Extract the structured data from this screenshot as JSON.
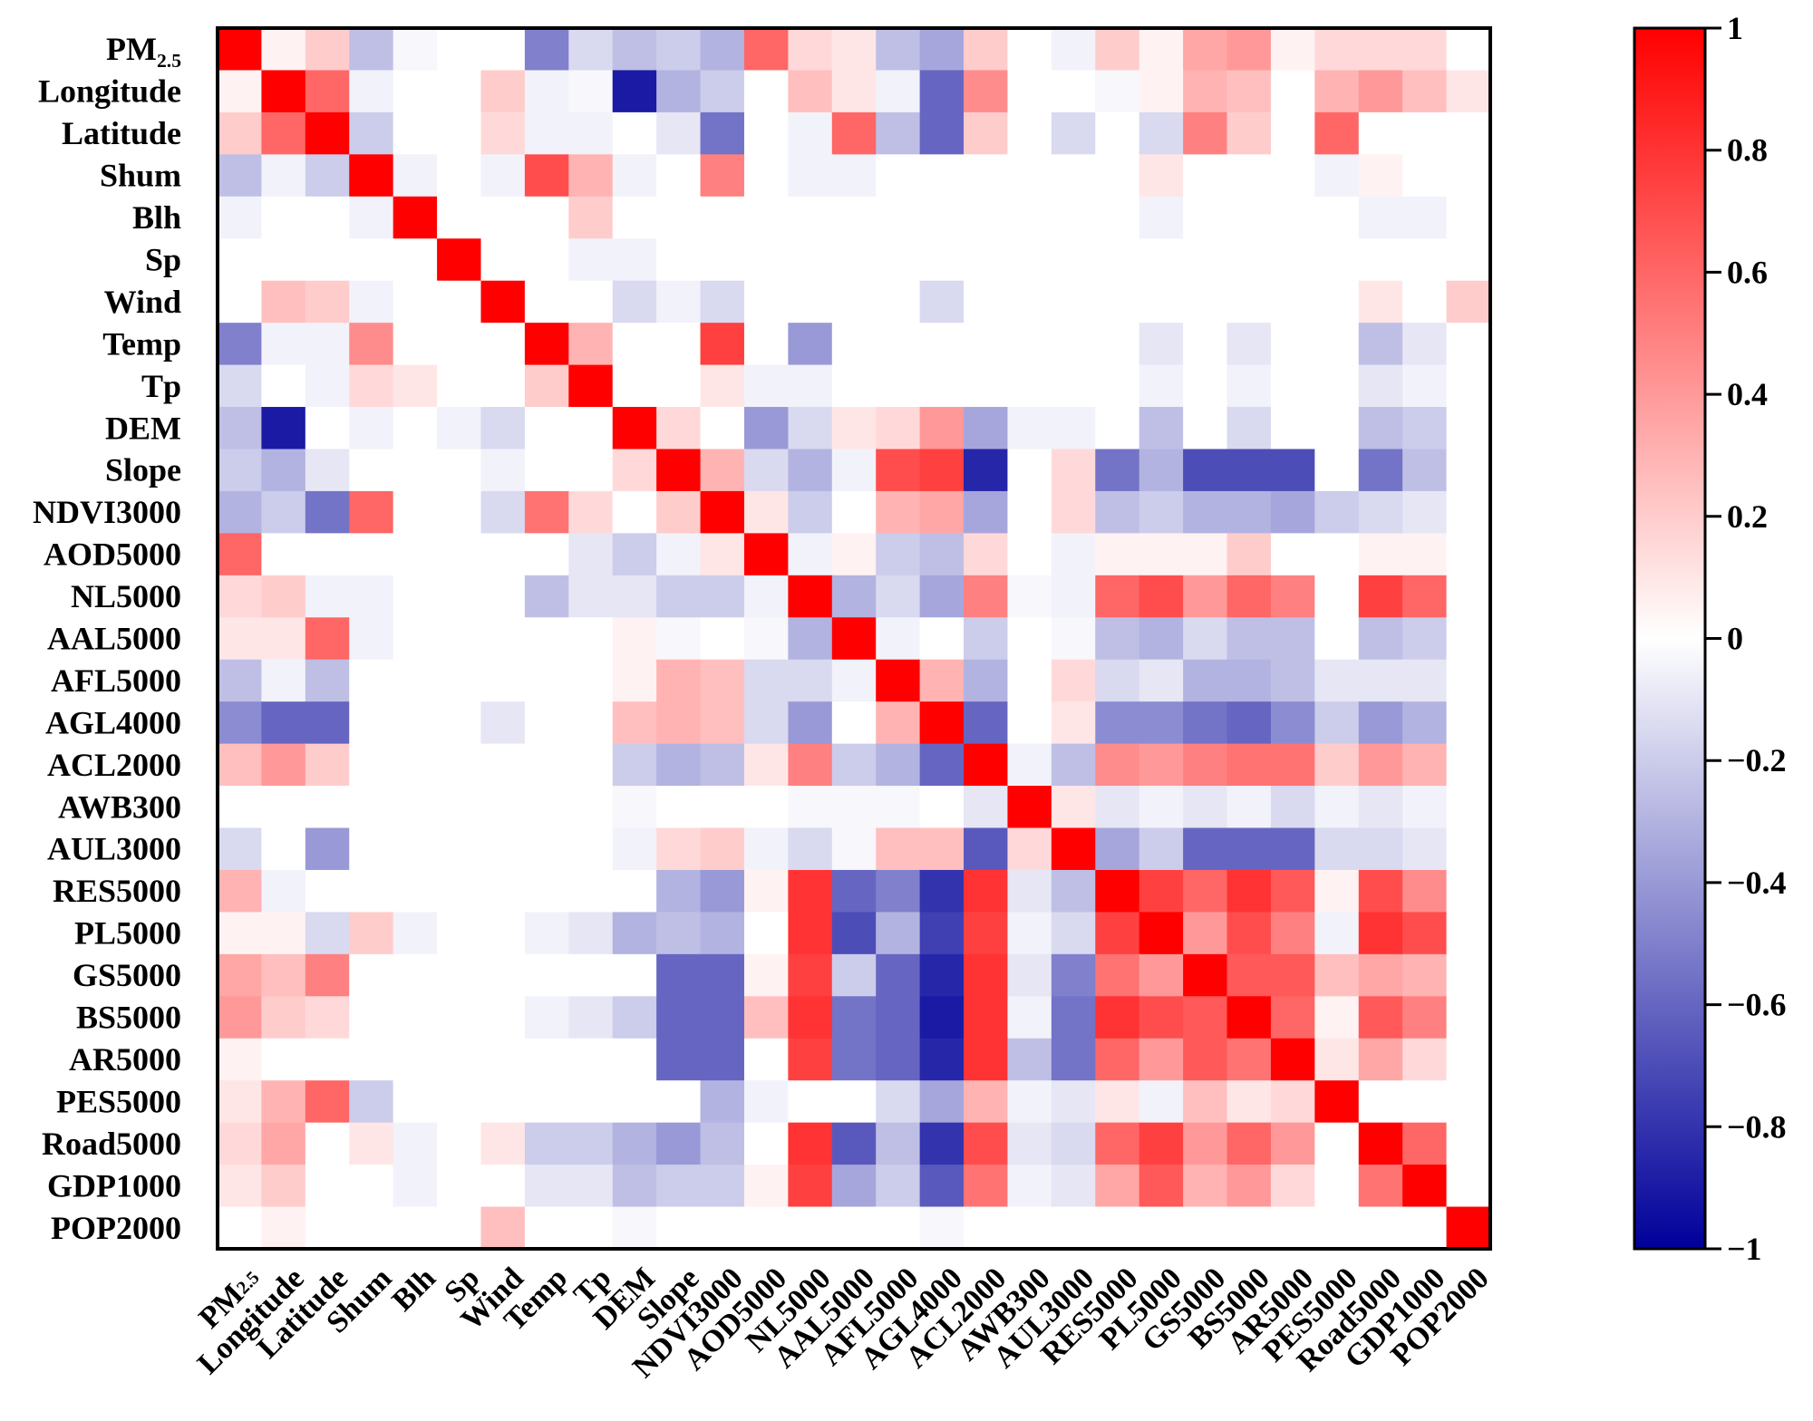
{
  "chart_data": {
    "type": "heatmap",
    "title": "",
    "labels": [
      "PM2.5",
      "Longitude",
      "Latitude",
      "Shum",
      "Blh",
      "Sp",
      "Wind",
      "Temp",
      "Tp",
      "DEM",
      "Slope",
      "NDVI3000",
      "AOD5000",
      "NL5000",
      "AAL5000",
      "AFL5000",
      "AGL4000",
      "ACL2000",
      "AWB300",
      "AUL3000",
      "RES5000",
      "PL5000",
      "GS5000",
      "BS5000",
      "AR5000",
      "PES5000",
      "Road5000",
      "GDP1000",
      "POP2000"
    ],
    "pm_label": {
      "main": "PM",
      "sub": "2.5"
    },
    "matrix": [
      [
        1,
        0.05,
        0.2,
        -0.25,
        -0.03,
        0,
        0,
        -0.5,
        -0.15,
        -0.25,
        -0.2,
        -0.3,
        0.6,
        0.15,
        0.1,
        -0.25,
        -0.35,
        0.2,
        0,
        -0.05,
        0.2,
        0.05,
        0.35,
        0.4,
        0.05,
        0.15,
        0.15,
        0.15,
        0
      ],
      [
        0.05,
        1,
        0.6,
        -0.05,
        0,
        0,
        0.2,
        -0.05,
        -0.03,
        -0.9,
        -0.3,
        -0.2,
        0,
        0.25,
        0.1,
        -0.05,
        -0.6,
        0.45,
        0,
        0,
        -0.03,
        0.05,
        0.3,
        0.25,
        0,
        0.3,
        0.4,
        0.25,
        0.1
      ],
      [
        0.2,
        0.6,
        1,
        -0.2,
        0,
        0,
        0.15,
        -0.05,
        -0.05,
        0,
        -0.1,
        -0.55,
        0,
        -0.05,
        0.6,
        -0.25,
        -0.6,
        0.2,
        0,
        -0.15,
        0,
        -0.15,
        0.5,
        0.2,
        0,
        0.6,
        0,
        0,
        0
      ],
      [
        -0.25,
        -0.05,
        -0.2,
        1,
        -0.05,
        0,
        -0.05,
        0.7,
        0.3,
        -0.05,
        0,
        0.5,
        0,
        -0.05,
        -0.05,
        0,
        0,
        0,
        0,
        0,
        0,
        0.1,
        0,
        0,
        0,
        -0.05,
        0.05,
        0,
        0
      ],
      [
        -0.05,
        0,
        0,
        -0.05,
        1,
        0,
        0,
        0,
        0.2,
        0,
        0,
        0,
        0,
        0,
        0,
        0,
        0,
        0,
        0,
        0,
        0,
        -0.05,
        0,
        0,
        0,
        0,
        -0.05,
        -0.05,
        0
      ],
      [
        0,
        0,
        0,
        0,
        0,
        1,
        0,
        0,
        -0.05,
        -0.05,
        0,
        0,
        0,
        0,
        0,
        0,
        0,
        0,
        0,
        0,
        0,
        0,
        0,
        0,
        0,
        0,
        0,
        0,
        0
      ],
      [
        0,
        0.25,
        0.2,
        -0.05,
        0,
        0,
        1,
        0,
        0,
        -0.15,
        -0.05,
        -0.15,
        0,
        0,
        0,
        0,
        -0.15,
        0,
        0,
        0,
        0,
        0,
        0,
        0,
        0,
        0,
        0.1,
        0,
        0.2
      ],
      [
        -0.5,
        -0.05,
        -0.05,
        0.45,
        0,
        0,
        0,
        1,
        0.3,
        0,
        0,
        0.75,
        0,
        -0.4,
        0,
        0,
        0,
        0,
        0,
        0,
        0,
        -0.1,
        0,
        -0.1,
        0,
        0,
        -0.25,
        -0.1,
        0
      ],
      [
        -0.15,
        0,
        -0.05,
        0.15,
        0.1,
        0,
        0,
        0.2,
        1,
        0,
        0,
        0.1,
        -0.05,
        -0.05,
        0,
        0,
        0,
        0,
        0,
        0,
        0,
        -0.05,
        0,
        -0.05,
        0,
        0,
        -0.1,
        -0.05,
        0
      ],
      [
        -0.25,
        -0.9,
        0,
        -0.05,
        0,
        -0.05,
        -0.15,
        0,
        0,
        1,
        0.15,
        0,
        -0.4,
        -0.15,
        0.1,
        0.15,
        0.4,
        -0.35,
        -0.05,
        -0.05,
        0,
        -0.25,
        0,
        -0.15,
        0,
        0,
        -0.25,
        -0.2,
        0
      ],
      [
        -0.2,
        -0.3,
        -0.1,
        0,
        0,
        0,
        -0.05,
        0,
        0,
        0.15,
        1,
        0.3,
        -0.15,
        -0.3,
        -0.05,
        0.7,
        0.75,
        -0.85,
        0,
        0.15,
        -0.55,
        -0.3,
        -0.7,
        -0.7,
        -0.7,
        0,
        -0.55,
        -0.25,
        0
      ],
      [
        -0.3,
        -0.2,
        -0.55,
        0.6,
        0,
        0,
        -0.15,
        0.55,
        0.15,
        0,
        0.2,
        1,
        0.1,
        -0.2,
        0,
        0.3,
        0.35,
        -0.35,
        0,
        0.15,
        -0.25,
        -0.2,
        -0.3,
        -0.3,
        -0.35,
        -0.2,
        -0.15,
        -0.1,
        0
      ],
      [
        0.6,
        0,
        0,
        0,
        0,
        0,
        0,
        0,
        -0.1,
        -0.2,
        -0.05,
        0.1,
        1,
        -0.05,
        0.05,
        -0.2,
        -0.25,
        0.15,
        0,
        -0.05,
        0.05,
        0.05,
        0.05,
        0.2,
        0,
        0,
        0.05,
        0.05,
        0
      ],
      [
        0.15,
        0.2,
        -0.05,
        -0.05,
        0,
        0,
        0,
        -0.25,
        -0.1,
        -0.1,
        -0.2,
        -0.2,
        -0.05,
        1,
        -0.3,
        -0.15,
        -0.35,
        0.5,
        -0.03,
        -0.05,
        0.6,
        0.7,
        0.4,
        0.6,
        0.5,
        0,
        0.75,
        0.6,
        0
      ],
      [
        0.1,
        0.1,
        0.6,
        -0.05,
        0,
        0,
        0,
        0,
        0,
        0.05,
        -0.03,
        0,
        -0.03,
        -0.3,
        1,
        -0.05,
        0,
        -0.2,
        0,
        -0.03,
        -0.25,
        -0.3,
        -0.15,
        -0.25,
        -0.25,
        0,
        -0.25,
        -0.2,
        0
      ],
      [
        -0.25,
        -0.05,
        -0.25,
        0,
        0,
        0,
        0,
        0,
        0,
        0.05,
        0.3,
        0.25,
        -0.15,
        -0.15,
        -0.05,
        1,
        0.3,
        -0.3,
        0,
        0.15,
        -0.15,
        -0.1,
        -0.3,
        -0.3,
        -0.25,
        -0.1,
        -0.1,
        -0.1,
        0
      ],
      [
        -0.45,
        -0.6,
        -0.6,
        0,
        0,
        0,
        -0.1,
        0,
        0,
        0.25,
        0.3,
        0.25,
        -0.15,
        -0.4,
        0,
        0.3,
        1,
        -0.6,
        0,
        0.1,
        -0.45,
        -0.45,
        -0.55,
        -0.6,
        -0.45,
        -0.2,
        -0.4,
        -0.3,
        0
      ],
      [
        0.25,
        0.4,
        0.2,
        0,
        0,
        0,
        0,
        0,
        0,
        -0.2,
        -0.3,
        -0.25,
        0.1,
        0.5,
        -0.2,
        -0.3,
        -0.6,
        1,
        -0.05,
        -0.25,
        0.45,
        0.4,
        0.5,
        0.55,
        0.55,
        0.2,
        0.4,
        0.3,
        0
      ],
      [
        0,
        0,
        0,
        0,
        0,
        0,
        0,
        0,
        0,
        -0.03,
        0,
        0,
        0,
        -0.03,
        -0.03,
        -0.03,
        0,
        -0.1,
        1,
        0.1,
        -0.1,
        -0.05,
        -0.1,
        -0.05,
        -0.15,
        -0.05,
        -0.1,
        -0.05,
        0
      ],
      [
        -0.15,
        0,
        -0.4,
        0,
        0,
        0,
        0,
        0,
        0,
        -0.05,
        0.15,
        0.2,
        -0.05,
        -0.15,
        -0.03,
        0.25,
        0.25,
        -0.65,
        0.15,
        1,
        -0.35,
        -0.2,
        -0.6,
        -0.6,
        -0.6,
        -0.15,
        -0.15,
        -0.1,
        0
      ],
      [
        0.3,
        -0.05,
        0,
        0,
        0,
        0,
        0,
        0,
        0,
        0,
        -0.3,
        -0.4,
        0.05,
        0.8,
        -0.6,
        -0.5,
        -0.8,
        0.8,
        -0.1,
        -0.25,
        1,
        0.75,
        0.6,
        0.8,
        0.65,
        0.05,
        0.7,
        0.45,
        0
      ],
      [
        0.05,
        0.05,
        -0.15,
        0.2,
        -0.05,
        0,
        0,
        -0.05,
        -0.1,
        -0.3,
        -0.25,
        -0.3,
        0,
        0.8,
        -0.7,
        -0.3,
        -0.75,
        0.75,
        -0.05,
        -0.15,
        0.75,
        1,
        0.4,
        0.7,
        0.5,
        -0.05,
        0.8,
        0.7,
        0
      ],
      [
        0.35,
        0.25,
        0.5,
        0,
        0,
        0,
        0,
        0,
        0,
        0,
        -0.6,
        -0.6,
        0.05,
        0.75,
        -0.2,
        -0.6,
        -0.85,
        0.8,
        -0.1,
        -0.5,
        0.55,
        0.4,
        1,
        0.65,
        0.65,
        0.25,
        0.35,
        0.3,
        0
      ],
      [
        0.4,
        0.2,
        0.15,
        0,
        0,
        0,
        0,
        -0.05,
        -0.1,
        -0.2,
        -0.6,
        -0.6,
        0.25,
        0.8,
        -0.55,
        -0.6,
        -0.9,
        0.8,
        -0.05,
        -0.55,
        0.8,
        0.7,
        0.65,
        1,
        0.6,
        0.05,
        0.65,
        0.5,
        0
      ],
      [
        0.05,
        0,
        0,
        0,
        0,
        0,
        0,
        0,
        0,
        0,
        -0.6,
        -0.6,
        0,
        0.75,
        -0.55,
        -0.6,
        -0.85,
        0.8,
        -0.25,
        -0.55,
        0.6,
        0.4,
        0.65,
        0.55,
        1,
        0.1,
        0.35,
        0.15,
        0
      ],
      [
        0.1,
        0.3,
        0.6,
        -0.2,
        0,
        0,
        0,
        0,
        0,
        0,
        0,
        -0.3,
        -0.05,
        0,
        0,
        -0.15,
        -0.35,
        0.3,
        -0.05,
        -0.1,
        0.1,
        -0.05,
        0.25,
        0.1,
        0.15,
        1,
        0,
        0,
        0
      ],
      [
        0.15,
        0.35,
        0,
        0.1,
        -0.05,
        0,
        0.1,
        -0.2,
        -0.2,
        -0.3,
        -0.4,
        -0.25,
        0,
        0.8,
        -0.65,
        -0.25,
        -0.8,
        0.7,
        -0.1,
        -0.15,
        0.6,
        0.75,
        0.4,
        0.6,
        0.4,
        0,
        1,
        0.6,
        0
      ],
      [
        0.1,
        0.2,
        0,
        0,
        -0.05,
        0,
        0,
        -0.1,
        -0.1,
        -0.25,
        -0.2,
        -0.2,
        0.05,
        0.75,
        -0.35,
        -0.2,
        -0.65,
        0.55,
        -0.05,
        -0.1,
        0.35,
        0.65,
        0.3,
        0.4,
        0.15,
        0,
        0.55,
        1,
        0
      ],
      [
        0,
        0.05,
        0,
        0,
        0,
        0,
        0.25,
        0,
        0,
        -0.03,
        0,
        0,
        0,
        0,
        0,
        0,
        -0.03,
        0,
        0,
        0,
        0,
        0,
        0,
        0,
        0,
        0,
        0,
        0,
        1
      ]
    ],
    "colorbar": {
      "min": -1,
      "max": 1,
      "ticks": [
        1,
        0.8,
        0.6,
        0.4,
        0.2,
        0,
        -0.2,
        -0.4,
        -0.6,
        -0.8,
        -1
      ],
      "tick_labels": [
        "1",
        "0.8",
        "0.6",
        "0.4",
        "0.2",
        "0",
        "−0.2",
        "−0.4",
        "−0.6",
        "−0.8",
        "−1"
      ],
      "colors": {
        "negative": "#00009a",
        "mid": "#ffffff",
        "positive": "#ff0000"
      }
    },
    "xlabel": "",
    "ylabel": ""
  }
}
